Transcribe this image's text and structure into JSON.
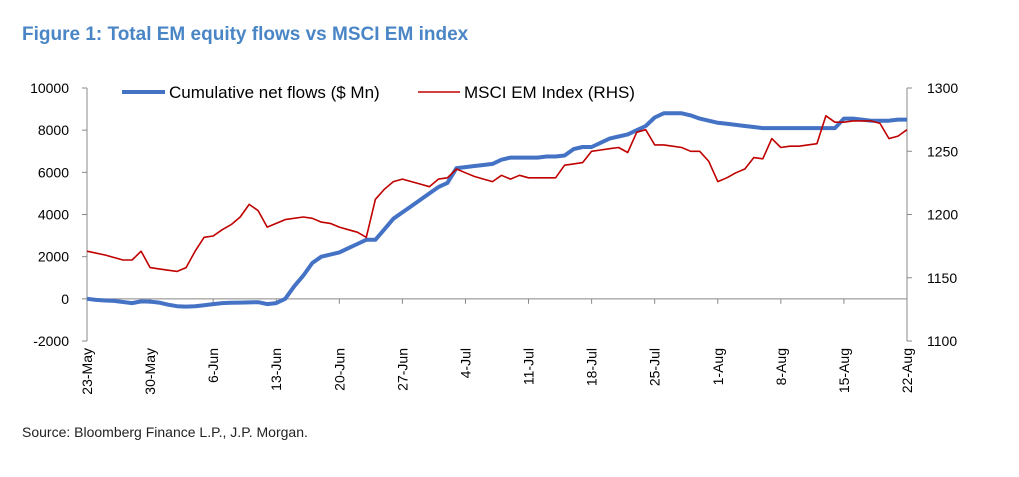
{
  "title": "Figure 1: Total EM equity flows vs MSCI EM index",
  "source": "Source: Bloomberg Finance L.P., J.P. Morgan.",
  "colors": {
    "title": "#4a86c5",
    "flows": "#4472c4",
    "index": "#c00000"
  },
  "chart_data": {
    "type": "line",
    "title": "Figure 1: Total EM equity flows vs MSCI EM index",
    "x_range": [
      "23-May",
      "22-Aug"
    ],
    "xticks": [
      "23-May",
      "30-May",
      "6-Jun",
      "13-Jun",
      "20-Jun",
      "27-Jun",
      "4-Jul",
      "11-Jul",
      "18-Jul",
      "25-Jul",
      "1-Aug",
      "8-Aug",
      "15-Aug",
      "22-Aug"
    ],
    "y_left": {
      "range": [
        -2000,
        10000
      ],
      "ticks": [
        -2000,
        0,
        2000,
        4000,
        6000,
        8000,
        10000
      ]
    },
    "y_right": {
      "range": [
        1100,
        1300
      ],
      "ticks": [
        1100,
        1150,
        1200,
        1250,
        1300
      ]
    },
    "legend_position": "top",
    "grid": false,
    "series": [
      {
        "name": "Cumulative net flows ($ Mn)",
        "axis": "left",
        "x": [
          0,
          1,
          2,
          3,
          4,
          5,
          6,
          7,
          8,
          9,
          10,
          11,
          12,
          13,
          14,
          15,
          16,
          17,
          18,
          19,
          20,
          21,
          22,
          23,
          24,
          25,
          26,
          27,
          28,
          29,
          30,
          31,
          32,
          33,
          34,
          35,
          36,
          37,
          38,
          39,
          40,
          41,
          42,
          43,
          44,
          45,
          46,
          47,
          48,
          49,
          50,
          51,
          52,
          53,
          54,
          55,
          56,
          57,
          58,
          59,
          60,
          61,
          62,
          63,
          64,
          65,
          66,
          67,
          68,
          69,
          70,
          71,
          72,
          73,
          74,
          75,
          76,
          77,
          78,
          79,
          80,
          81,
          82,
          83,
          84,
          85,
          86,
          87,
          88,
          89,
          90,
          91
        ],
        "values": [
          0,
          -50,
          -80,
          -100,
          -150,
          -200,
          -120,
          -130,
          -180,
          -280,
          -350,
          -370,
          -350,
          -300,
          -250,
          -200,
          -190,
          -180,
          -170,
          -160,
          -250,
          -200,
          0,
          600,
          1100,
          1700,
          2000,
          2100,
          2200,
          2400,
          2600,
          2800,
          2800,
          3300,
          3800,
          4100,
          4400,
          4700,
          5000,
          5300,
          5500,
          6200,
          6250,
          6300,
          6350,
          6400,
          6600,
          6700,
          6700,
          6700,
          6700,
          6750,
          6750,
          6800,
          7100,
          7200,
          7200,
          7400,
          7600,
          7700,
          7800,
          8000,
          8200,
          8600,
          8800,
          8800,
          8800,
          8700,
          8550,
          8450,
          8350,
          8300,
          8250,
          8200,
          8150,
          8100,
          8100,
          8100,
          8100,
          8100,
          8100,
          8100,
          8100,
          8100,
          8550,
          8550,
          8500,
          8450,
          8450,
          8450,
          8500,
          8500
        ]
      },
      {
        "name": "MSCI EM Index (RHS)",
        "axis": "right",
        "x": [
          0,
          2,
          3,
          4,
          5,
          6,
          7,
          8,
          9,
          10,
          11,
          12,
          13,
          14,
          15,
          16,
          17,
          18,
          19,
          20,
          21,
          22,
          24,
          25,
          26,
          27,
          28,
          29,
          30,
          31,
          32,
          33,
          34,
          35,
          36,
          37,
          38,
          39,
          40,
          41,
          42,
          43,
          44,
          45,
          46,
          47,
          48,
          49,
          50,
          51,
          52,
          53,
          54,
          55,
          56,
          57,
          58,
          59,
          60,
          61,
          62,
          63,
          64,
          65,
          66,
          67,
          68,
          69,
          70,
          71,
          72,
          73,
          74,
          75,
          76,
          77,
          78,
          79,
          80,
          81,
          82,
          83,
          84,
          85,
          86,
          87,
          88,
          89,
          90,
          91
        ],
        "values": [
          1171,
          1168,
          1166,
          1164,
          1164,
          1171,
          1158,
          1157,
          1156,
          1155,
          1158,
          1171,
          1182,
          1183,
          1188,
          1192,
          1198,
          1208,
          1203,
          1190,
          1193,
          1196,
          1198,
          1197,
          1194,
          1193,
          1190,
          1188,
          1186,
          1182,
          1212,
          1220,
          1226,
          1228,
          1226,
          1224,
          1222,
          1228,
          1229,
          1236,
          1233,
          1230,
          1228,
          1226,
          1231,
          1228,
          1231,
          1229,
          1229,
          1229,
          1229,
          1239,
          1240,
          1241,
          1250,
          1251,
          1252,
          1253,
          1249,
          1265,
          1267,
          1255,
          1255,
          1254,
          1253,
          1250,
          1250,
          1242,
          1226,
          1229,
          1233,
          1236,
          1245,
          1244,
          1260,
          1253,
          1254,
          1254,
          1255,
          1256,
          1278,
          1273,
          1273,
          1274,
          1274,
          1274,
          1272,
          1260,
          1262,
          1267
        ]
      }
    ]
  }
}
